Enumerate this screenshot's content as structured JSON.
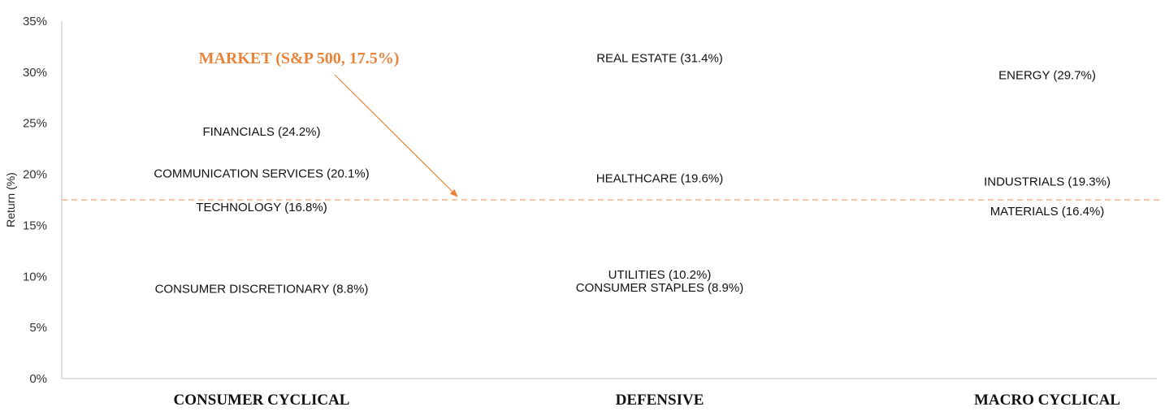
{
  "chart_data": {
    "type": "scatter",
    "ylabel": "Return (%)",
    "ylim": [
      0,
      35
    ],
    "yticks": [
      "0%",
      "5%",
      "10%",
      "15%",
      "20%",
      "25%",
      "30%",
      "35%"
    ],
    "categories": [
      "CONSUMER CYCLICAL",
      "DEFENSIVE",
      "MACRO CYCLICAL"
    ],
    "points": [
      {
        "label": "FINANCIALS (24.2%)",
        "category": "CONSUMER CYCLICAL",
        "y": 24.2
      },
      {
        "label": "COMMUNICATION SERVICES (20.1%)",
        "category": "CONSUMER CYCLICAL",
        "y": 20.1
      },
      {
        "label": "TECHNOLOGY (16.8%)",
        "category": "CONSUMER CYCLICAL",
        "y": 16.8
      },
      {
        "label": "CONSUMER DISCRETIONARY (8.8%)",
        "category": "CONSUMER CYCLICAL",
        "y": 8.8
      },
      {
        "label": "REAL ESTATE (31.4%)",
        "category": "DEFENSIVE",
        "y": 31.4
      },
      {
        "label": "HEALTHCARE (19.6%)",
        "category": "DEFENSIVE",
        "y": 19.6
      },
      {
        "label": "UTILITIES (10.2%)",
        "category": "DEFENSIVE",
        "y": 10.2
      },
      {
        "label": "CONSUMER STAPLES (8.9%)",
        "category": "DEFENSIVE",
        "y": 8.9
      },
      {
        "label": "ENERGY (29.7%)",
        "category": "MACRO CYCLICAL",
        "y": 29.7
      },
      {
        "label": "INDUSTRIALS (19.3%)",
        "category": "MACRO CYCLICAL",
        "y": 19.3
      },
      {
        "label": "MATERIALS (16.4%)",
        "category": "MACRO CYCLICAL",
        "y": 16.4
      }
    ],
    "market": {
      "label": "MARKET (S&P 500, 17.5%)",
      "y": 17.5,
      "color": "#e8833a",
      "line_color": "#f4c8a6"
    },
    "grid": false
  }
}
